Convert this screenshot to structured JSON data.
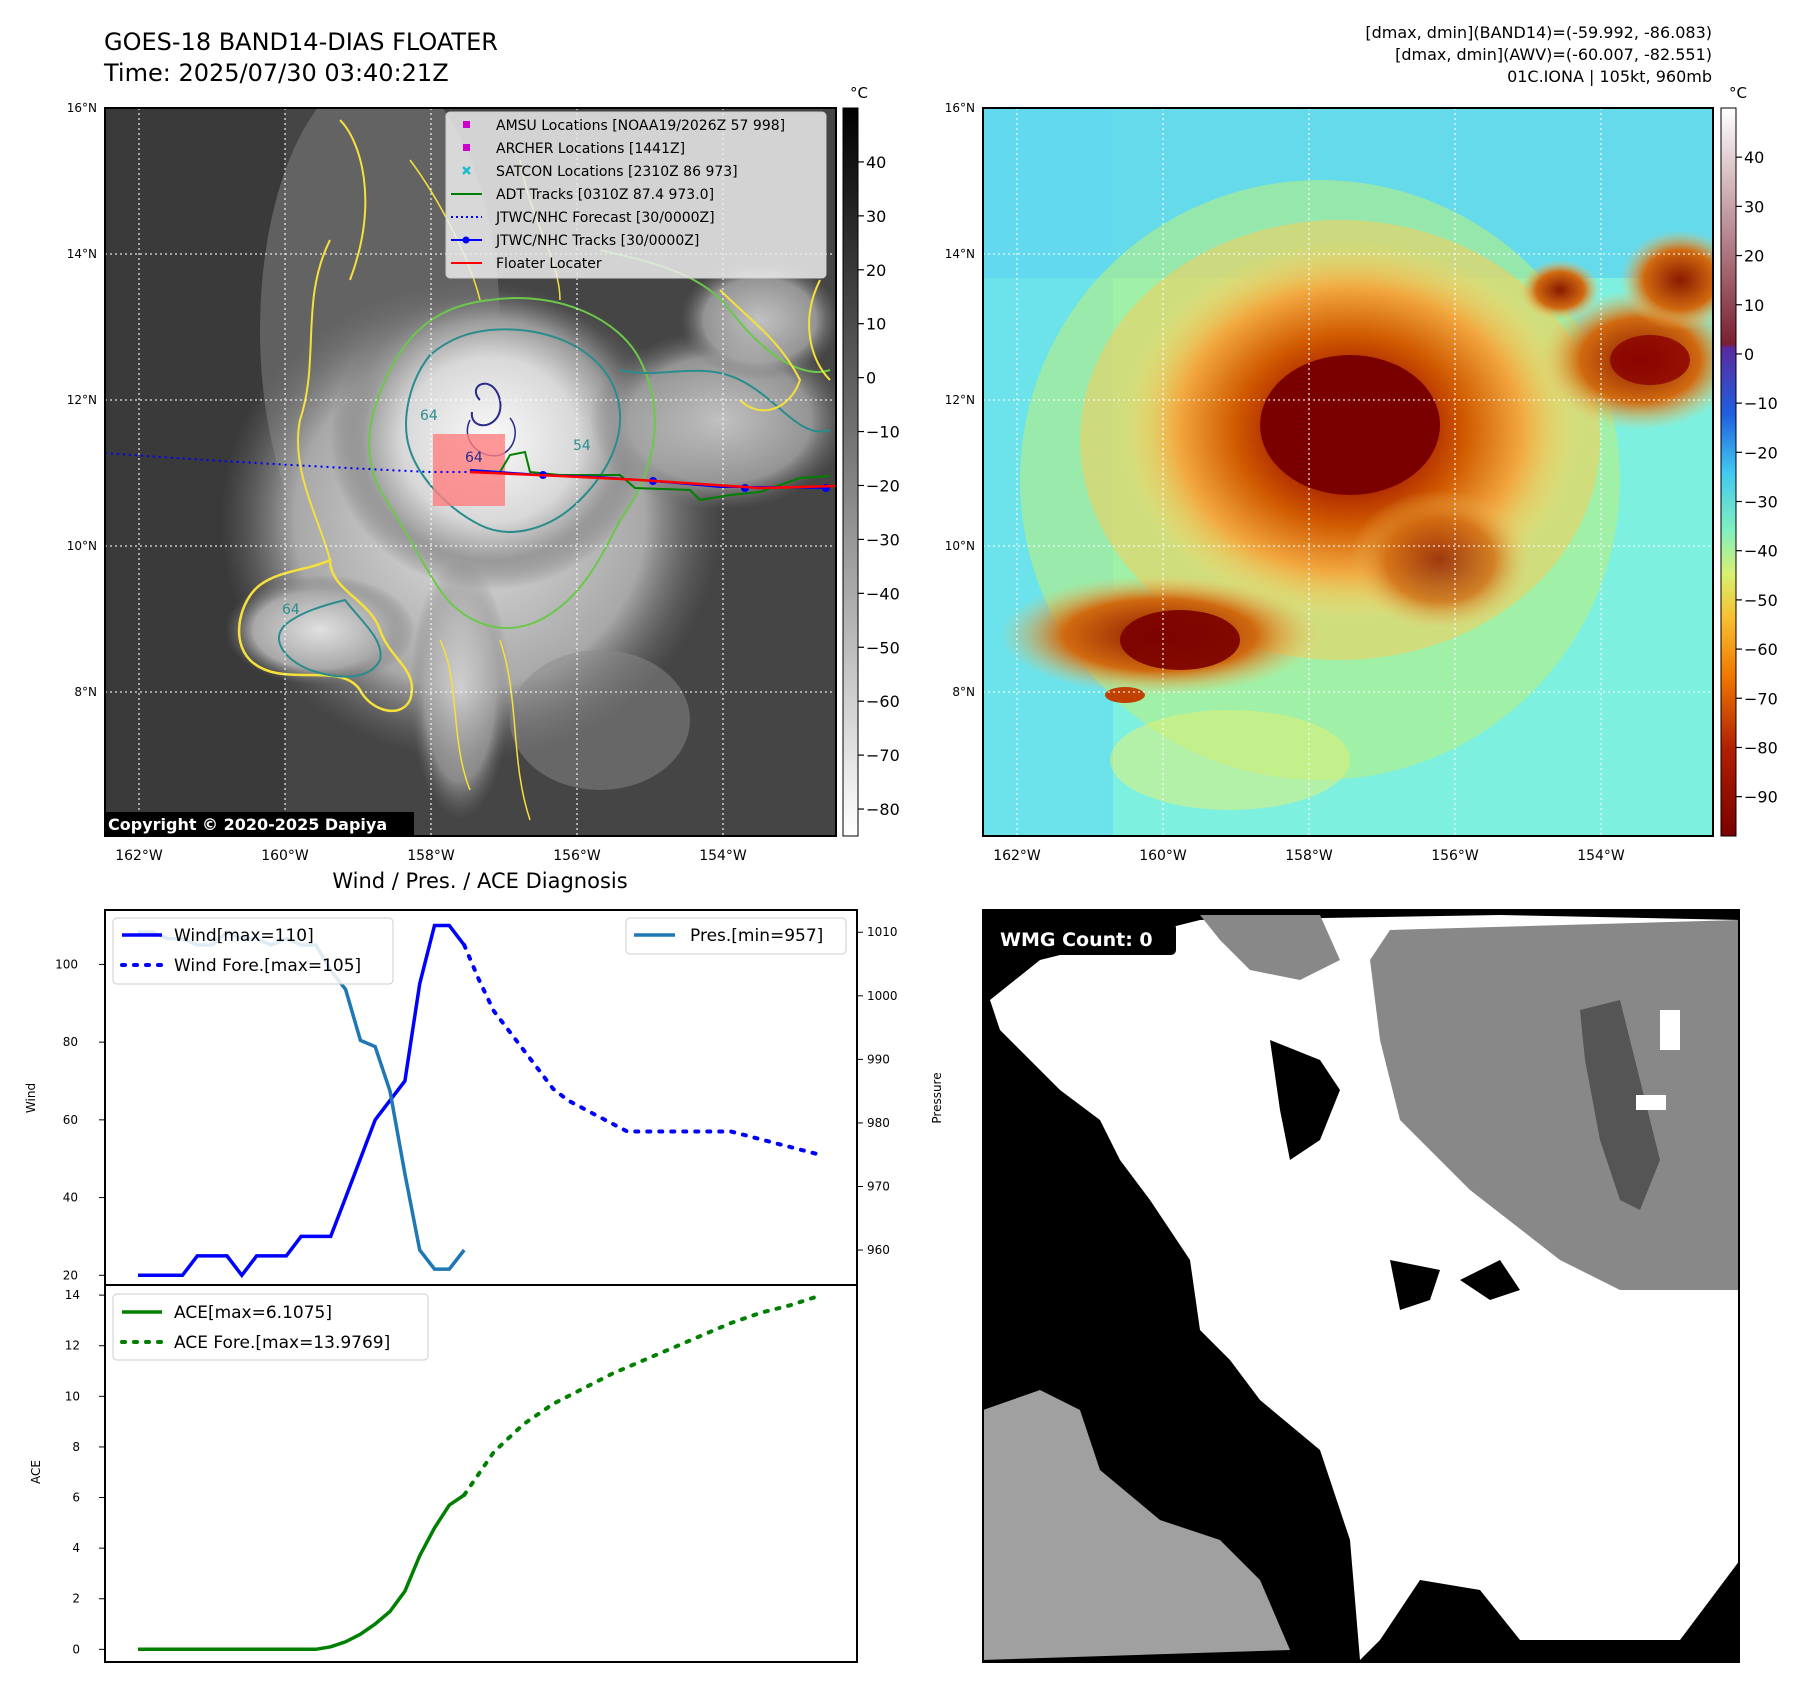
{
  "header": {
    "title_line1": "GOES-18 BAND14-DIAS FLOATER",
    "title_line2": "Time: 2025/07/30 03:40:21Z",
    "info_line1": "[dmax, dmin](BAND14)=(-59.992, -86.083)",
    "info_line2": "[dmax, dmin](AWV)=(-60.007, -82.551)",
    "info_line3": "01C.IONA | 105kt, 960mb"
  },
  "map_axes": {
    "lat_labels": [
      "16°N",
      "14°N",
      "12°N",
      "10°N",
      "8°N"
    ],
    "lon_labels": [
      "162°W",
      "160°W",
      "158°W",
      "156°W",
      "154°W"
    ],
    "lat_ticks": [
      16,
      14,
      12,
      10,
      8
    ],
    "lon_ticks": [
      -162,
      -160,
      -158,
      -156,
      -154
    ],
    "lat_range": [
      6.05,
      16.0
    ],
    "lon_range": [
      -162.5,
      -152.5
    ]
  },
  "left_map": {
    "copyright": "Copyright © 2020-2025 Dapiya",
    "colorbar_unit": "°C",
    "colorbar_ticks": [
      "40",
      "30",
      "20",
      "10",
      "0",
      "−10",
      "−20",
      "−30",
      "−40",
      "−50",
      "−60",
      "−70",
      "−80"
    ],
    "contour_labels": [
      "64",
      "64",
      "54",
      "64"
    ],
    "legend": [
      {
        "label": "AMSU Locations [NOAA19/2026Z 57 998]",
        "marker": "square",
        "color": "#cc00cc"
      },
      {
        "label": "ARCHER Locations [1441Z]",
        "marker": "square",
        "color": "#cc00cc"
      },
      {
        "label": "SATCON Locations [2310Z 86 973]",
        "marker": "x",
        "color": "#17becf"
      },
      {
        "label": "ADT Tracks [0310Z 87.4 973.0]",
        "marker": "line",
        "color": "#008000"
      },
      {
        "label": "JTWC/NHC Forecast [30/0000Z]",
        "marker": "dotted",
        "color": "#0000ff"
      },
      {
        "label": "JTWC/NHC Tracks [30/0000Z]",
        "marker": "line-dot",
        "color": "#0000ff"
      },
      {
        "label": "Floater Locater",
        "marker": "line",
        "color": "#ff0000"
      }
    ]
  },
  "right_map": {
    "colorbar_unit": "°C",
    "colorbar_ticks": [
      "40",
      "30",
      "20",
      "10",
      "0",
      "−10",
      "−20",
      "−30",
      "−40",
      "−50",
      "−60",
      "−70",
      "−80",
      "−90"
    ]
  },
  "wmg": {
    "label": "WMG Count: 0"
  },
  "chart_data": [
    {
      "type": "line",
      "title": "Wind / Pres. / ACE Diagnosis",
      "ylabel": "Wind",
      "y2label": "Pressure",
      "ylim": [
        17.5,
        114
      ],
      "y2lim": [
        954.5,
        1013.5
      ],
      "yticks": [
        20,
        40,
        60,
        80,
        100
      ],
      "y2ticks": [
        960,
        970,
        980,
        990,
        1000,
        1010
      ],
      "x": [
        0,
        1,
        2,
        3,
        4,
        5,
        6,
        7,
        8,
        9,
        10,
        11,
        12,
        13,
        14,
        15,
        16,
        17,
        18,
        19,
        20,
        21,
        22,
        23,
        24,
        25,
        26,
        27,
        28,
        29,
        30,
        31,
        32,
        33,
        34,
        35,
        36,
        37,
        38,
        39,
        40,
        41,
        42,
        43,
        44,
        45,
        46
      ],
      "series": [
        {
          "name": "Wind[max=110]",
          "color": "#0000ff",
          "style": "solid",
          "axis": "left",
          "x": [
            0,
            1,
            2,
            3,
            4,
            5,
            6,
            7,
            8,
            9,
            10,
            11,
            12,
            13,
            14,
            15,
            16,
            17,
            18,
            19,
            20,
            21,
            22
          ],
          "values": [
            20,
            20,
            20,
            20,
            25,
            25,
            25,
            20,
            25,
            25,
            25,
            30,
            30,
            30,
            40,
            50,
            60,
            65,
            70,
            95,
            110,
            110,
            105
          ]
        },
        {
          "name": "Wind Fore.[max=105]",
          "color": "#0000ff",
          "style": "dotted",
          "axis": "left",
          "x": [
            22,
            23,
            24,
            25,
            26,
            27,
            28,
            29,
            30,
            31,
            32,
            33,
            34,
            35,
            36,
            37,
            38,
            39,
            40,
            41,
            42,
            43,
            44,
            45,
            46
          ],
          "values": [
            105,
            96,
            88,
            83,
            78,
            73,
            68,
            65,
            63,
            61,
            59,
            57,
            57,
            57,
            57,
            57,
            57,
            57,
            57,
            56,
            55,
            54,
            53,
            52,
            51
          ]
        },
        {
          "name": "Pres.[min=957]",
          "color": "#1f77b4",
          "style": "solid",
          "axis": "right",
          "x": [
            0,
            1,
            2,
            3,
            4,
            5,
            6,
            7,
            8,
            9,
            10,
            11,
            12,
            13,
            14,
            15,
            16,
            17,
            18,
            19,
            20,
            21,
            22
          ],
          "values": [
            1010,
            1010,
            1009,
            1009,
            1008,
            1008,
            1010,
            1009,
            1009,
            1008,
            1009,
            1008,
            1008,
            1004,
            1001,
            993,
            992,
            985,
            972,
            960,
            957,
            957,
            960
          ]
        }
      ]
    },
    {
      "type": "line",
      "ylabel": "ACE",
      "ylim": [
        -0.5,
        14.4
      ],
      "yticks": [
        0,
        2,
        4,
        6,
        8,
        10,
        12,
        14
      ],
      "series": [
        {
          "name": "ACE[max=6.1075]",
          "color": "#008000",
          "style": "solid",
          "x": [
            0,
            1,
            2,
            3,
            4,
            5,
            6,
            7,
            8,
            9,
            10,
            11,
            12,
            13,
            14,
            15,
            16,
            17,
            18,
            19,
            20,
            21,
            22
          ],
          "values": [
            0,
            0,
            0,
            0,
            0,
            0,
            0,
            0,
            0,
            0,
            0,
            0,
            0,
            0.1,
            0.3,
            0.6,
            1.0,
            1.5,
            2.3,
            3.7,
            4.8,
            5.7,
            6.1
          ]
        },
        {
          "name": "ACE Fore.[max=13.9769]",
          "color": "#008000",
          "style": "dotted",
          "x": [
            22,
            24,
            26,
            28,
            30,
            32,
            34,
            36,
            38,
            40,
            42,
            44,
            46
          ],
          "values": [
            6.1,
            7.8,
            8.9,
            9.7,
            10.3,
            10.9,
            11.4,
            11.9,
            12.4,
            12.9,
            13.3,
            13.6,
            13.98
          ]
        }
      ]
    }
  ]
}
